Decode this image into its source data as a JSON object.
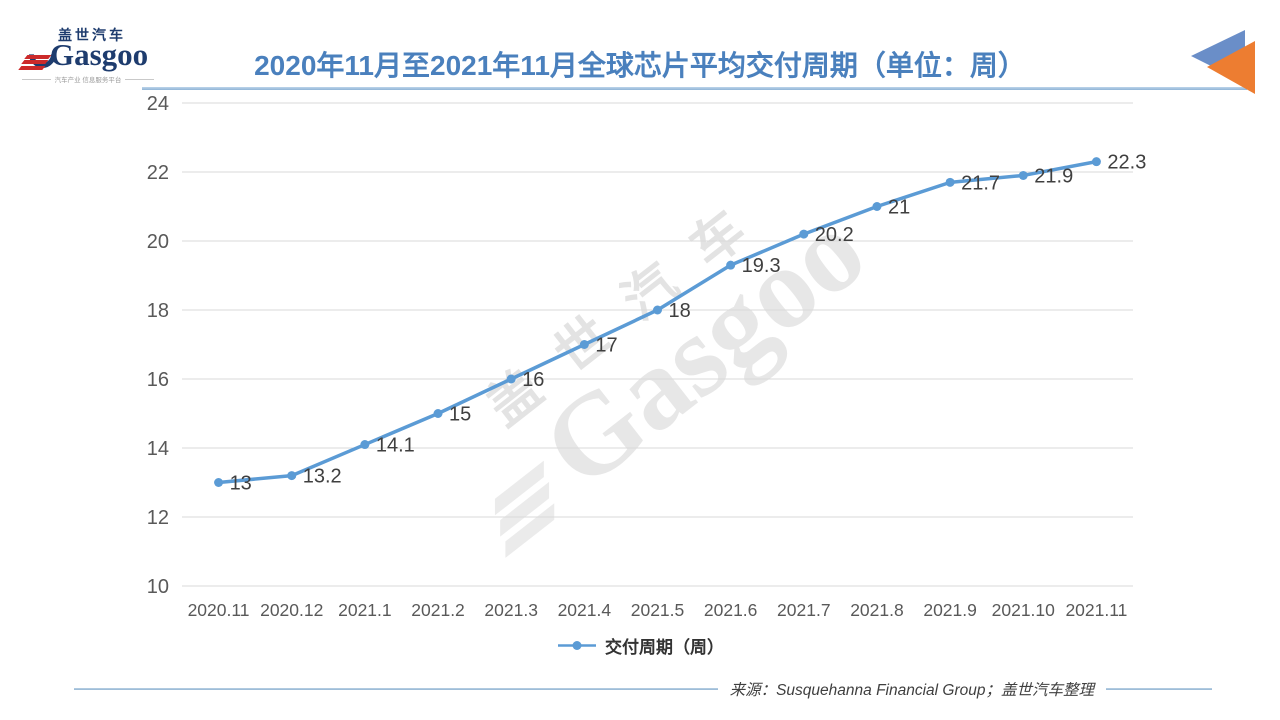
{
  "header": {
    "logo": {
      "brand_cn": "盖世汽车",
      "brand_en": "Gasgoo",
      "tagline": "汽车产业 信息服务平台"
    }
  },
  "chart_data": {
    "type": "line",
    "title": "2020年11月至2021年11月全球芯片平均交付周期（单位：周）",
    "categories": [
      "2020.11",
      "2020.12",
      "2021.1",
      "2021.2",
      "2021.3",
      "2021.4",
      "2021.5",
      "2021.6",
      "2021.7",
      "2021.8",
      "2021.9",
      "2021.10",
      "2021.11"
    ],
    "series": [
      {
        "name": "交付周期（周）",
        "values": [
          13,
          13.2,
          14.1,
          15,
          16,
          17,
          18,
          19.3,
          20.2,
          21,
          21.7,
          21.9,
          22.3
        ],
        "color": "#5B9BD5"
      }
    ],
    "xlabel": "",
    "ylabel": "",
    "ylim": [
      10,
      24
    ],
    "ytick_step": 2,
    "grid": "horizontal",
    "legend_position": "bottom",
    "data_labels": true
  },
  "watermark": {
    "line1": "盖世汽车",
    "line2": "Gasgoo"
  },
  "footer": {
    "source": "来源：Susquehanna Financial Group；盖世汽车整理"
  },
  "colors": {
    "title_blue": "#4A80BD",
    "series_blue": "#5B9BD5",
    "grid_gray": "#D9D9D9",
    "axis_text": "#595959",
    "label_text": "#3F3F3F",
    "brand_navy": "#1E3C6E",
    "brand_red": "#CC2A2A",
    "icon_blue": "#6A8EC8",
    "icon_orange": "#ED7D31"
  }
}
